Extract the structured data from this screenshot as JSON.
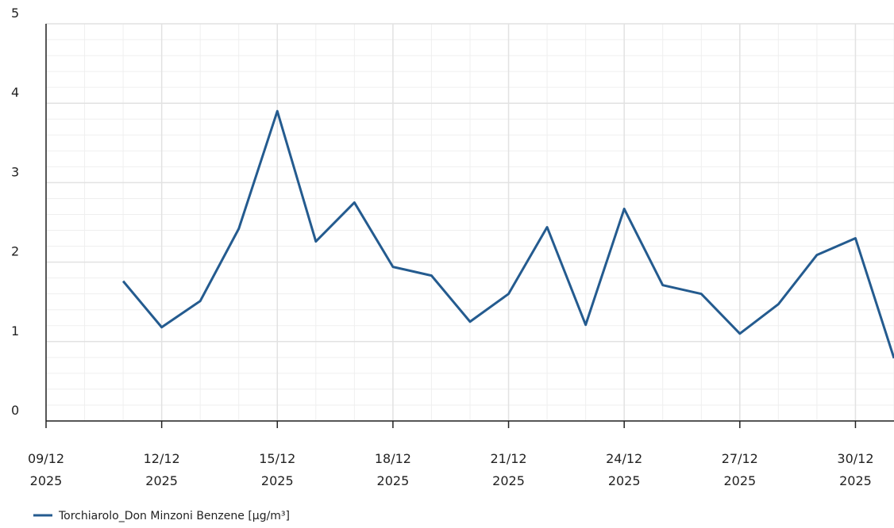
{
  "chart_data": {
    "type": "line",
    "x": [
      "2025-12-11",
      "2025-12-12",
      "2025-12-13",
      "2025-12-14",
      "2025-12-15",
      "2025-12-16",
      "2025-12-17",
      "2025-12-18",
      "2025-12-19",
      "2025-12-20",
      "2025-12-21",
      "2025-12-22",
      "2025-12-23",
      "2025-12-24",
      "2025-12-25",
      "2025-12-26",
      "2025-12-27",
      "2025-12-28",
      "2025-12-29",
      "2025-12-30",
      "2025-12-31"
    ],
    "series": [
      {
        "name": "Torchiarolo_Don Minzoni Benzene [µg/m³]",
        "color": "#245b8f",
        "values": [
          1.76,
          1.18,
          1.51,
          2.42,
          3.9,
          2.26,
          2.75,
          1.94,
          1.83,
          1.25,
          1.6,
          2.44,
          1.21,
          2.67,
          1.71,
          1.6,
          1.1,
          1.47,
          2.09,
          2.3,
          0.79
        ]
      }
    ],
    "xlim": [
      "2025-12-09",
      "2025-12-31"
    ],
    "xticks": [
      {
        "value": "2025-12-09",
        "label": "09/12\n2025"
      },
      {
        "value": "2025-12-12",
        "label": "12/12\n2025"
      },
      {
        "value": "2025-12-15",
        "label": "15/12\n2025"
      },
      {
        "value": "2025-12-18",
        "label": "18/12\n2025"
      },
      {
        "value": "2025-12-21",
        "label": "21/12\n2025"
      },
      {
        "value": "2025-12-24",
        "label": "24/12\n2025"
      },
      {
        "value": "2025-12-27",
        "label": "27/12\n2025"
      },
      {
        "value": "2025-12-30",
        "label": "30/12\n2025"
      }
    ],
    "ylim": [
      0,
      5
    ],
    "yticks": [
      0,
      1,
      2,
      3,
      4,
      5
    ],
    "grid": true,
    "legend": "bottom"
  }
}
